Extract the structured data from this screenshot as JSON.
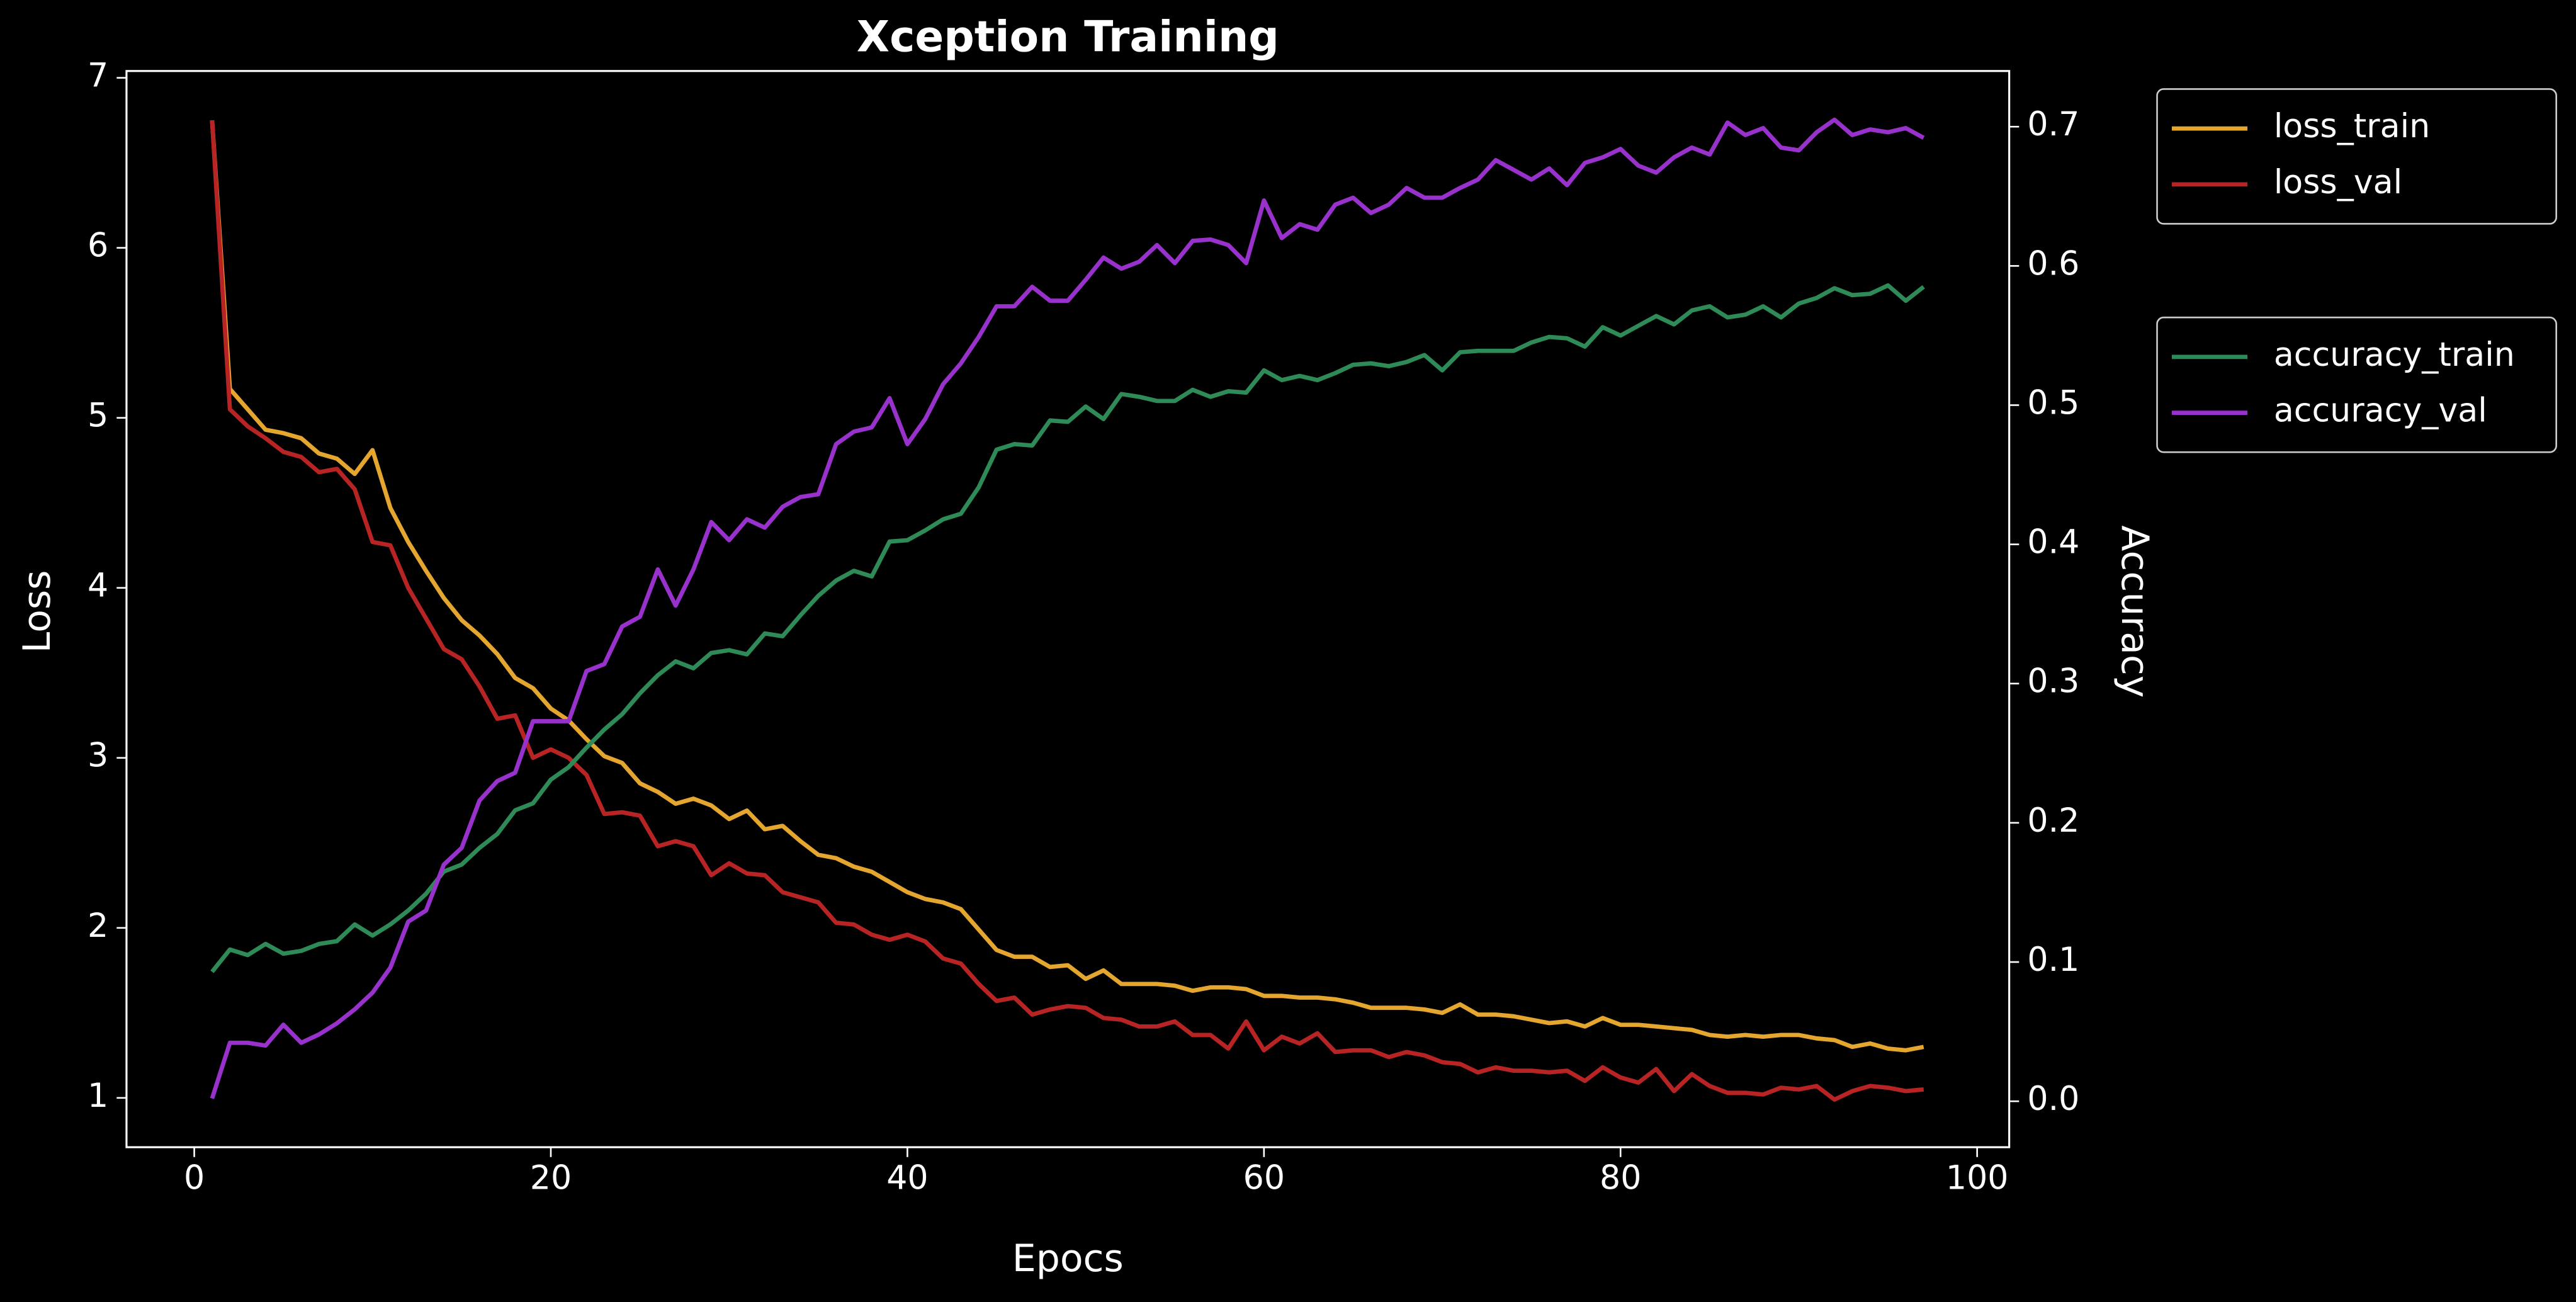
{
  "chart_data": {
    "type": "line",
    "title": "Xception Training",
    "x_label": "Epocs",
    "y_label": "Loss",
    "y2_label": "Accuracy",
    "x": [
      1,
      2,
      3,
      4,
      5,
      6,
      7,
      8,
      9,
      10,
      11,
      12,
      13,
      14,
      15,
      16,
      17,
      18,
      19,
      20,
      21,
      22,
      23,
      24,
      25,
      26,
      27,
      28,
      29,
      30,
      31,
      32,
      33,
      34,
      35,
      36,
      37,
      38,
      39,
      40,
      41,
      42,
      43,
      44,
      45,
      46,
      47,
      48,
      49,
      50,
      51,
      52,
      53,
      54,
      55,
      56,
      57,
      58,
      59,
      60,
      61,
      62,
      63,
      64,
      65,
      66,
      67,
      68,
      69,
      70,
      71,
      72,
      73,
      74,
      75,
      76,
      77,
      78,
      79,
      80,
      81,
      82,
      83,
      84,
      85,
      86,
      87,
      88,
      89,
      90,
      91,
      92,
      93,
      94,
      95,
      96,
      97
    ],
    "xlim": [
      -3.8,
      101.8
    ],
    "xticks": [
      0,
      20,
      40,
      60,
      80,
      100
    ],
    "ylim": [
      0.71,
      7.04
    ],
    "yticks": [
      1,
      2,
      3,
      4,
      5,
      6,
      7
    ],
    "y2lim": [
      -0.033,
      0.74
    ],
    "y2ticks": [
      {
        "value": 0,
        "label": "0.0"
      },
      0.1,
      0.2,
      0.3,
      0.4,
      0.5,
      0.6,
      0.7
    ],
    "legend_loc": "outside upper right",
    "series": [
      {
        "name": "loss_train",
        "color": "#e5a630",
        "axis": "y",
        "values": [
          6.75,
          5.17,
          5.05,
          4.93,
          4.91,
          4.88,
          4.79,
          4.76,
          4.67,
          4.81,
          4.47,
          4.27,
          4.1,
          3.94,
          3.81,
          3.72,
          3.61,
          3.47,
          3.41,
          3.29,
          3.22,
          3.11,
          3.01,
          2.97,
          2.85,
          2.8,
          2.73,
          2.76,
          2.72,
          2.64,
          2.69,
          2.58,
          2.6,
          2.51,
          2.43,
          2.41,
          2.36,
          2.33,
          2.27,
          2.21,
          2.17,
          2.15,
          2.11,
          1.99,
          1.87,
          1.83,
          1.83,
          1.77,
          1.78,
          1.7,
          1.75,
          1.67,
          1.67,
          1.67,
          1.66,
          1.63,
          1.65,
          1.65,
          1.64,
          1.6,
          1.6,
          1.59,
          1.59,
          1.58,
          1.56,
          1.53,
          1.53,
          1.53,
          1.52,
          1.5,
          1.55,
          1.49,
          1.49,
          1.48,
          1.46,
          1.44,
          1.45,
          1.42,
          1.47,
          1.43,
          1.43,
          1.42,
          1.41,
          1.4,
          1.37,
          1.36,
          1.37,
          1.36,
          1.37,
          1.37,
          1.35,
          1.34,
          1.3,
          1.32,
          1.29,
          1.28,
          1.3
        ]
      },
      {
        "name": "loss_val",
        "color": "#b82424",
        "axis": "y",
        "values": [
          6.75,
          5.05,
          4.95,
          4.88,
          4.8,
          4.77,
          4.68,
          4.7,
          4.58,
          4.27,
          4.25,
          4.0,
          3.82,
          3.64,
          3.58,
          3.42,
          3.23,
          3.25,
          3.0,
          3.05,
          3.0,
          2.9,
          2.67,
          2.68,
          2.66,
          2.48,
          2.51,
          2.48,
          2.31,
          2.38,
          2.32,
          2.31,
          2.21,
          2.18,
          2.15,
          2.03,
          2.02,
          1.96,
          1.93,
          1.96,
          1.92,
          1.82,
          1.79,
          1.67,
          1.57,
          1.59,
          1.49,
          1.52,
          1.54,
          1.53,
          1.47,
          1.46,
          1.42,
          1.42,
          1.45,
          1.37,
          1.37,
          1.29,
          1.45,
          1.28,
          1.36,
          1.32,
          1.38,
          1.27,
          1.28,
          1.28,
          1.24,
          1.27,
          1.25,
          1.21,
          1.2,
          1.15,
          1.18,
          1.16,
          1.16,
          1.15,
          1.16,
          1.1,
          1.18,
          1.12,
          1.09,
          1.17,
          1.04,
          1.14,
          1.07,
          1.03,
          1.03,
          1.02,
          1.06,
          1.05,
          1.07,
          0.99,
          1.04,
          1.07,
          1.06,
          1.04,
          1.05
        ]
      },
      {
        "name": "accuracy_train",
        "color": "#2e8b57",
        "axis": "y2",
        "values": [
          0.093,
          0.109,
          0.105,
          0.113,
          0.106,
          0.108,
          0.113,
          0.115,
          0.127,
          0.119,
          0.127,
          0.137,
          0.149,
          0.165,
          0.17,
          0.182,
          0.192,
          0.209,
          0.214,
          0.231,
          0.24,
          0.254,
          0.267,
          0.278,
          0.293,
          0.306,
          0.316,
          0.311,
          0.322,
          0.324,
          0.321,
          0.336,
          0.334,
          0.349,
          0.363,
          0.374,
          0.381,
          0.377,
          0.402,
          0.403,
          0.41,
          0.418,
          0.422,
          0.441,
          0.468,
          0.472,
          0.471,
          0.489,
          0.488,
          0.499,
          0.49,
          0.508,
          0.506,
          0.503,
          0.503,
          0.511,
          0.506,
          0.51,
          0.509,
          0.525,
          0.518,
          0.521,
          0.518,
          0.523,
          0.529,
          0.53,
          0.528,
          0.531,
          0.536,
          0.525,
          0.538,
          0.539,
          0.539,
          0.539,
          0.545,
          0.549,
          0.548,
          0.542,
          0.556,
          0.55,
          0.557,
          0.564,
          0.558,
          0.568,
          0.571,
          0.563,
          0.565,
          0.571,
          0.563,
          0.573,
          0.577,
          0.584,
          0.579,
          0.58,
          0.586,
          0.575,
          0.585
        ]
      },
      {
        "name": "accuracy_val",
        "color": "#9932cc",
        "axis": "y2",
        "values": [
          0.002,
          0.042,
          0.042,
          0.04,
          0.055,
          0.042,
          0.048,
          0.056,
          0.066,
          0.078,
          0.096,
          0.129,
          0.137,
          0.17,
          0.182,
          0.216,
          0.23,
          0.236,
          0.273,
          0.273,
          0.273,
          0.309,
          0.314,
          0.341,
          0.348,
          0.382,
          0.356,
          0.382,
          0.416,
          0.403,
          0.418,
          0.412,
          0.427,
          0.434,
          0.436,
          0.472,
          0.481,
          0.484,
          0.505,
          0.472,
          0.49,
          0.515,
          0.53,
          0.549,
          0.571,
          0.571,
          0.585,
          0.575,
          0.575,
          0.59,
          0.606,
          0.598,
          0.603,
          0.615,
          0.602,
          0.618,
          0.619,
          0.615,
          0.602,
          0.647,
          0.62,
          0.63,
          0.626,
          0.644,
          0.649,
          0.638,
          0.644,
          0.656,
          0.649,
          0.649,
          0.656,
          0.662,
          0.676,
          0.669,
          0.662,
          0.67,
          0.658,
          0.674,
          0.678,
          0.684,
          0.672,
          0.667,
          0.678,
          0.685,
          0.68,
          0.703,
          0.694,
          0.699,
          0.685,
          0.683,
          0.696,
          0.705,
          0.694,
          0.698,
          0.696,
          0.699,
          0.692
        ]
      }
    ]
  }
}
